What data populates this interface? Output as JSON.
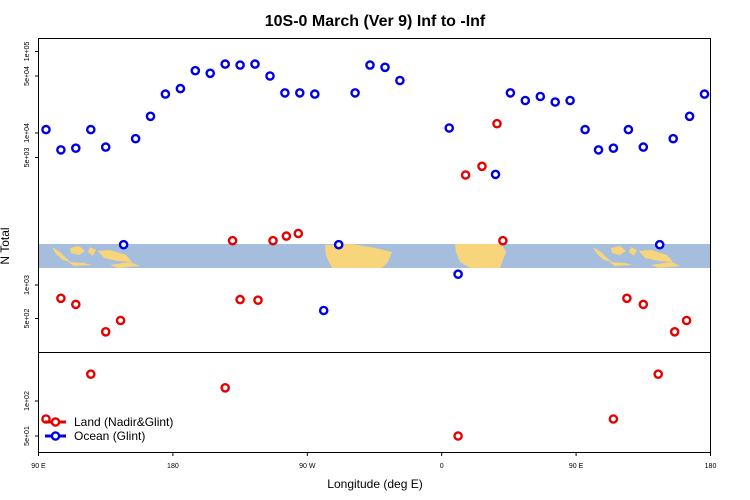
{
  "chart_data": {
    "type": "scatter",
    "title": "10S-0 March (Ver 9)   Inf to -Inf",
    "xlabel": "Longitude (deg E)",
    "ylabel": "N Total",
    "x_ticks": [
      "90 E",
      "180",
      "90 W",
      "0",
      "90 E",
      "180"
    ],
    "y_ticks": [
      "1e+05",
      "5e+04",
      "1e+04",
      "5e+03",
      "1e+03",
      "5e+02",
      "1e+02",
      "5e+01"
    ],
    "ylim": [
      35,
      100000
    ],
    "y_scale": "log (broken at map strip)",
    "legend_position": "bottom-left",
    "colors": {
      "land": "#e60000",
      "ocean": "#0000e6",
      "map_ocean": "#a6bede",
      "map_land": "#f8d47a"
    },
    "series": [
      {
        "name": "Land (Nadir&Glint)",
        "points": [
          [
            95,
            70
          ],
          [
            105,
            760
          ],
          [
            115,
            670
          ],
          [
            125,
            170
          ],
          [
            135,
            380
          ],
          [
            145,
            480
          ],
          [
            215,
            130
          ],
          [
            220,
            2500
          ],
          [
            225,
            740
          ],
          [
            237,
            730
          ],
          [
            247,
            2500
          ],
          [
            256,
            2750
          ],
          [
            264,
            2900
          ],
          [
            11,
            50
          ],
          [
            16,
            3050
          ],
          [
            27,
            3900
          ],
          [
            37,
            13000
          ],
          [
            41,
            2500
          ],
          [
            115,
            70
          ],
          [
            124,
            760
          ],
          [
            135,
            670
          ],
          [
            145,
            170
          ],
          [
            156,
            380
          ],
          [
            164,
            480
          ]
        ]
      },
      {
        "name": "Ocean (Glint)",
        "points": [
          [
            95,
            11000
          ],
          [
            105,
            6200
          ],
          [
            115,
            6500
          ],
          [
            125,
            11000
          ],
          [
            135,
            6700
          ],
          [
            147,
            2300
          ],
          [
            155,
            8500
          ],
          [
            165,
            16000
          ],
          [
            175,
            30000
          ],
          [
            185,
            35000
          ],
          [
            195,
            58000
          ],
          [
            205,
            54000
          ],
          [
            215,
            70000
          ],
          [
            225,
            68000
          ],
          [
            235,
            70000
          ],
          [
            245,
            50000
          ],
          [
            255,
            31000
          ],
          [
            265,
            31000
          ],
          [
            275,
            30000
          ],
          [
            281,
            590
          ],
          [
            291,
            2300
          ],
          [
            302,
            31000
          ],
          [
            312,
            68000
          ],
          [
            322,
            64000
          ],
          [
            332,
            44000
          ],
          [
            5,
            11500
          ],
          [
            11,
            1250
          ],
          [
            36,
            3100
          ],
          [
            46,
            31000
          ],
          [
            56,
            25000
          ],
          [
            66,
            28000
          ],
          [
            76,
            24000
          ],
          [
            86,
            25000
          ],
          [
            96,
            11000
          ],
          [
            105,
            6200
          ],
          [
            115,
            6500
          ],
          [
            125,
            11000
          ],
          [
            135,
            6700
          ],
          [
            146,
            2300
          ],
          [
            155,
            8500
          ],
          [
            166,
            16000
          ],
          [
            176,
            30000
          ]
        ]
      }
    ]
  }
}
